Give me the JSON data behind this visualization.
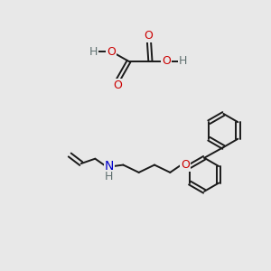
{
  "bg_color": "#e8e8e8",
  "bond_color": "#1a1a1a",
  "bond_width": 1.4,
  "atom_colors": {
    "O": "#cc0000",
    "N": "#0000cc",
    "H": "#607070",
    "C": "#1a1a1a"
  },
  "font_size": 8.5,
  "fig_width": 3.0,
  "fig_height": 3.0,
  "dpi": 100
}
